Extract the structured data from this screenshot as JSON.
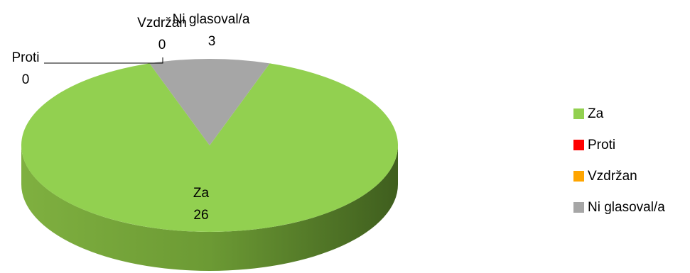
{
  "chart_data": {
    "type": "pie",
    "title": "",
    "style": "3d-pie",
    "categories": [
      "Za",
      "Proti",
      "Vzdržan",
      "Ni glasoval/a"
    ],
    "values": [
      26,
      0,
      0,
      3
    ],
    "colors": [
      "#92D050",
      "#FF0000",
      "#FFA500",
      "#A6A6A6"
    ],
    "data_labels": [
      {
        "name": "Za",
        "value": "26"
      },
      {
        "name": "Proti",
        "value": "0"
      },
      {
        "name": "Vzdržan",
        "value": "0"
      },
      {
        "name": "Ni glasoval/a",
        "value": "3"
      }
    ],
    "legend": {
      "position": "right",
      "entries": [
        "Za",
        "Proti",
        "Vzdržan",
        "Ni glasoval/a"
      ]
    }
  }
}
